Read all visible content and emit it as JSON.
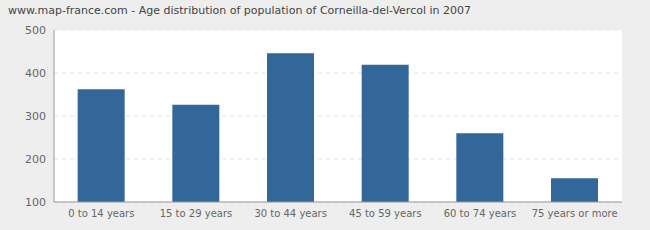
{
  "chart_data": {
    "type": "bar",
    "title": "www.map-france.com - Age distribution of population of Corneilla-del-Vercol in 2007",
    "categories": [
      "0 to 14 years",
      "15 to 29 years",
      "30 to 44 years",
      "45 to 59 years",
      "60 to 74 years",
      "75 years or more"
    ],
    "values": [
      362,
      326,
      446,
      419,
      260,
      155
    ],
    "color": "#336699",
    "ylim": [
      100,
      500
    ],
    "yticks": [
      100,
      200,
      300,
      400,
      500
    ],
    "grid": true
  }
}
